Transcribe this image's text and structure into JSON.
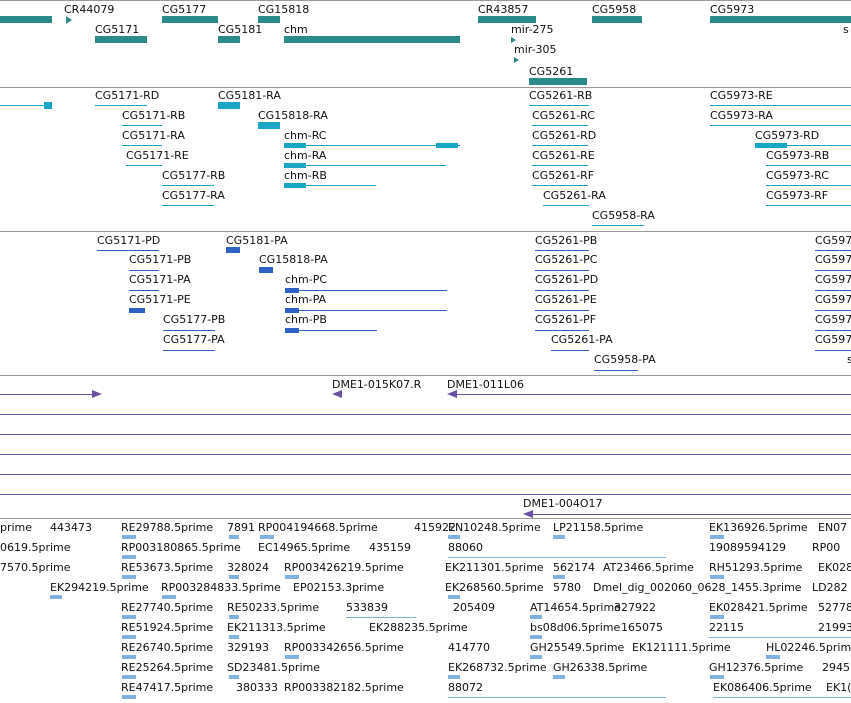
{
  "colors": {
    "gene": "#2b8a8a",
    "transcript": "#1aa5c4",
    "protein": "#2f62c4",
    "clone": "#6a4fa3",
    "est": "#7fb2de",
    "separator": "#9a9a9a"
  },
  "gene_track": {
    "labels": [
      "CR44079",
      "CG5177",
      "CG15818",
      "CR43857",
      "CG5958",
      "CG5973",
      "CG5171",
      "CG5181",
      "chm",
      "mir-275",
      "mir-305",
      "CG5261",
      "s"
    ]
  },
  "transcript_track": {
    "labels": [
      "CG5171-RD",
      "CG5181-RA",
      "CG5261-RB",
      "CG5973-RE",
      "CG5171-RB",
      "CG15818-RA",
      "CG5261-RC",
      "CG5973-RA",
      "CG5171-RA",
      "chm-RC",
      "CG5261-RD",
      "CG5973-RD",
      "CG5171-RE",
      "chm-RA",
      "CG5261-RE",
      "CG5973-RB",
      "CG5177-RB",
      "chm-RB",
      "CG5261-RF",
      "CG5973-RC",
      "CG5177-RA",
      "CG5261-RA",
      "CG5973-RF",
      "CG5958-RA"
    ]
  },
  "protein_track": {
    "labels": [
      "CG5171-PD",
      "CG5181-PA",
      "CG5261-PB",
      "CG597",
      "CG5171-PB",
      "CG15818-PA",
      "CG5261-PC",
      "CG597",
      "CG5171-PA",
      "chm-PC",
      "CG5261-PD",
      "CG597",
      "CG5171-PE",
      "chm-PA",
      "CG5261-PE",
      "CG597",
      "CG5177-PB",
      "chm-PB",
      "CG5261-PF",
      "CG597",
      "CG5177-PA",
      "CG5261-PA",
      "CG597",
      "CG5958-PA",
      "s"
    ]
  },
  "clone_track": {
    "labels": [
      "DME1-015K07.R",
      "DME1-011L06",
      "DME1-004O17"
    ]
  },
  "est_track": {
    "labels": [
      "prime",
      "443473",
      "RE29788.5prime",
      "7891",
      "RP004194668.5prime",
      "415922",
      "EN10248.5prime",
      "LP21158.5prime",
      "EK136926.5prime",
      "EN07",
      "0619.5prime",
      "RP003180865.5prime",
      "EC14965.5prime",
      "435159",
      "88060",
      "19089594129",
      "RP00",
      "7570.5prime",
      "RE53673.5prime",
      "328024",
      "RP003426219.5prime",
      "EK211301.5prime",
      "562174",
      "AT23466.5prime",
      "RH51293.5prime",
      "EK028",
      "EK294219.5prime",
      "RP003284833.5prime",
      "EP02153.3prime",
      "EK268560.5prime",
      "5780",
      "Dmel_dig_002060_0628_1455.3prime",
      "LD282",
      "RE27740.5prime",
      "RE50233.5prime",
      "533839",
      "205409",
      "AT14654.5prime",
      "327922",
      "EK028421.5prime",
      "52778",
      "RE51924.5prime",
      "EK211313.5prime",
      "EK288235.5prime",
      "bs08d06.5prime",
      "165075",
      "22115",
      "21993",
      "RE26740.5prime",
      "329193",
      "RP003342656.5prime",
      "414770",
      "GH25549.5prime",
      "EK121111.5prime",
      "HL02246.5prime",
      "RE25264.5prime",
      "SD23481.5prime",
      "EK268732.5prime",
      "GH26338.5prime",
      "GH12376.5prime",
      "2945",
      "RE47417.5prime",
      "380333",
      "RP003382182.5prime",
      "88072",
      "EK086406.5prime",
      "EK1("
    ]
  }
}
